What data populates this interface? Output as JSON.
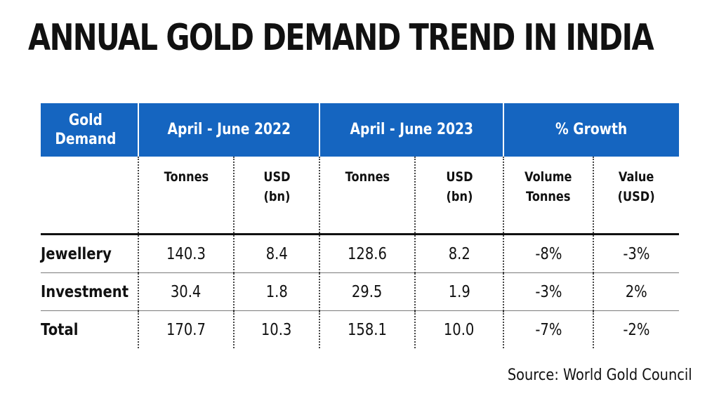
{
  "title": "ANNUAL GOLD DEMAND TREND IN INDIA",
  "source": "Source: World Gold Council",
  "chart_data": {
    "type": "table",
    "title": "ANNUAL GOLD DEMAND TREND IN INDIA",
    "header": {
      "row_label": "Gold\nDemand",
      "groups": [
        "April - June 2022",
        "April - June 2023",
        "% Growth"
      ]
    },
    "subheaders": [
      "Tonnes",
      "USD\n(bn)",
      "Tonnes",
      "USD\n(bn)",
      "Volume\nTonnes",
      "Value\n(USD)"
    ],
    "rows": [
      {
        "label": "Jewellery",
        "values": [
          "140.3",
          "8.4",
          "128.6",
          "8.2",
          "-8%",
          "-3%"
        ]
      },
      {
        "label": "Investment",
        "values": [
          "30.4",
          "1.8",
          "29.5",
          "1.9",
          "-3%",
          "2%"
        ]
      },
      {
        "label": "Total",
        "values": [
          "170.7",
          "10.3",
          "158.1",
          "10.0",
          "-7%",
          "-2%"
        ]
      }
    ],
    "header_color": "#1565c0"
  }
}
